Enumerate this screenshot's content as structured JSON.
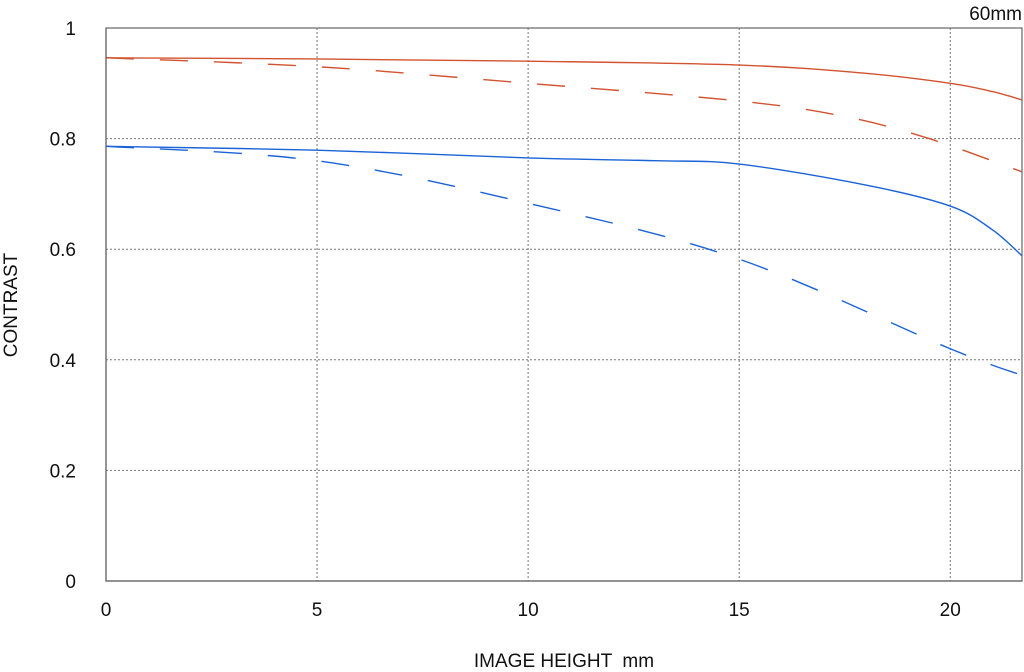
{
  "chart_data": {
    "type": "line",
    "title": "60mm",
    "xlabel": "IMAGE HEIGHT  mm",
    "ylabel": "CONTRAST",
    "xlim": [
      0,
      21.7
    ],
    "ylim": [
      0,
      1
    ],
    "grid": true,
    "xticks": [
      "0",
      "5",
      "10",
      "15",
      "20"
    ],
    "xtick_values": [
      0,
      5,
      10,
      15,
      20
    ],
    "yticks": [
      "0",
      "0.2",
      "0.4",
      "0.6",
      "0.8",
      "1"
    ],
    "ytick_values": [
      0,
      0.2,
      0.4,
      0.6,
      0.8,
      1
    ],
    "series": [
      {
        "name": "red-solid",
        "color": "#d2532f",
        "dashed": false,
        "x": [
          0,
          5,
          10,
          15,
          18,
          20,
          21,
          21.7
        ],
        "y": [
          0.946,
          0.944,
          0.94,
          0.933,
          0.918,
          0.9,
          0.885,
          0.87
        ]
      },
      {
        "name": "red-dashed",
        "color": "#d2532f",
        "dashed": true,
        "x": [
          0,
          5,
          10,
          15,
          17.5,
          19.5,
          21.7
        ],
        "y": [
          0.946,
          0.93,
          0.9,
          0.868,
          0.84,
          0.8,
          0.74
        ]
      },
      {
        "name": "blue-solid",
        "color": "#1a63d8",
        "dashed": false,
        "x": [
          0,
          5,
          10,
          13,
          15,
          18,
          20,
          21,
          21.7
        ],
        "y": [
          0.786,
          0.779,
          0.765,
          0.76,
          0.754,
          0.716,
          0.678,
          0.635,
          0.588
        ]
      },
      {
        "name": "blue-dashed",
        "color": "#1a63d8",
        "dashed": true,
        "x": [
          0,
          5,
          10,
          15,
          20,
          21.7
        ],
        "y": [
          0.786,
          0.76,
          0.683,
          0.582,
          0.42,
          0.372
        ]
      }
    ]
  }
}
